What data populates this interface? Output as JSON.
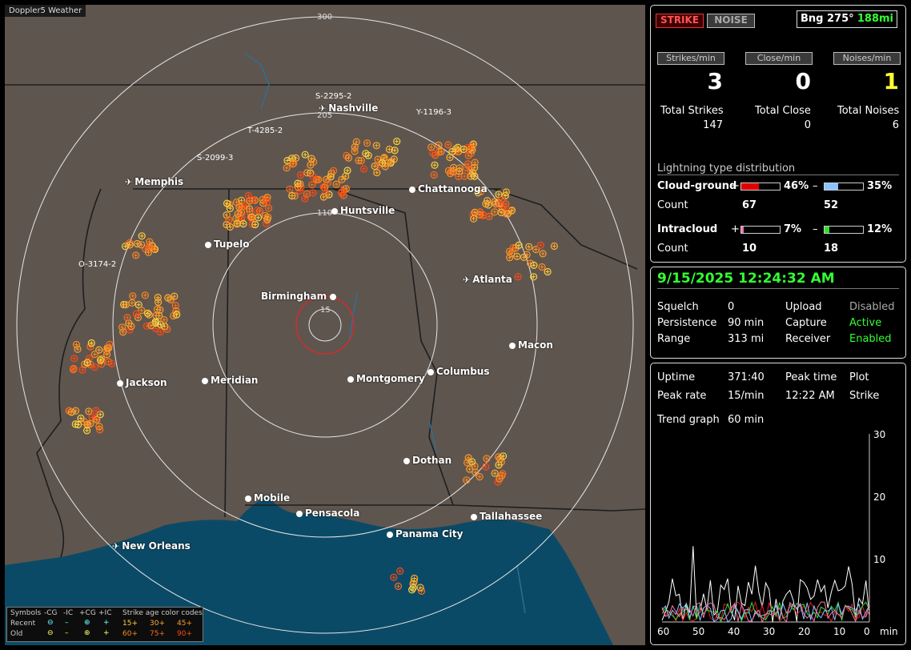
{
  "app": {
    "title": "Doppler5 Weather"
  },
  "map": {
    "range_labels": {
      "r300": "300",
      "r205": "205",
      "r110": "110",
      "r15": "15"
    },
    "cities": [
      {
        "name": "Nashville",
        "kind": "airport"
      },
      {
        "name": "Memphis",
        "kind": "airport"
      },
      {
        "name": "Chattanooga",
        "kind": "city"
      },
      {
        "name": "Huntsville",
        "kind": "city"
      },
      {
        "name": "Tupelo",
        "kind": "city"
      },
      {
        "name": "Birmingham",
        "kind": "city"
      },
      {
        "name": "Atlanta",
        "kind": "airport"
      },
      {
        "name": "Macon",
        "kind": "city"
      },
      {
        "name": "Jackson",
        "kind": "city"
      },
      {
        "name": "Meridian",
        "kind": "city"
      },
      {
        "name": "Montgomery",
        "kind": "city"
      },
      {
        "name": "Columbus",
        "kind": "city"
      },
      {
        "name": "Dothan",
        "kind": "city"
      },
      {
        "name": "Mobile",
        "kind": "city"
      },
      {
        "name": "Pensacola",
        "kind": "city"
      },
      {
        "name": "Tallahassee",
        "kind": "city"
      },
      {
        "name": "Panama City",
        "kind": "city"
      },
      {
        "name": "New Orleans",
        "kind": "airport"
      }
    ],
    "storm_labels": [
      "S-2295-2",
      "Y-1196-3",
      "T-4285-2",
      "S-2099-3",
      "O-3174-2"
    ]
  },
  "legend": {
    "symbols_label": "Symbols",
    "col_ncg": "-CG",
    "col_nic": "-IC",
    "col_pcg": "+CG",
    "col_pic": "+IC",
    "recent_label": "Recent",
    "old_label": "Old",
    "age_title": "Strike age color codes",
    "ages": [
      "15+",
      "30+",
      "45+",
      "60+",
      "75+",
      "90+"
    ],
    "age_colors": [
      "#ffd23c",
      "#ffb030",
      "#ff9a2a",
      "#ff8a1e",
      "#ff6a1a",
      "#ff4a14"
    ]
  },
  "top_panel": {
    "strike_button": "STRIKE",
    "noise_button": "NOISE",
    "bearing_label": "Bng 275°",
    "bearing_distance": "188mi",
    "rates": [
      {
        "label": "Strikes/min",
        "value": "3",
        "color": "#ffffff"
      },
      {
        "label": "Close/min",
        "value": "0",
        "color": "#ffffff"
      },
      {
        "label": "Noises/min",
        "value": "1",
        "color": "#ffff33"
      }
    ],
    "totals": [
      {
        "label": "Total Strikes",
        "value": "147"
      },
      {
        "label": "Total Close",
        "value": "0"
      },
      {
        "label": "Total Noises",
        "value": "6"
      }
    ],
    "distribution": {
      "title": "Lightning type distribution",
      "count_label": "Count",
      "cloud_ground": {
        "label": "Cloud-ground",
        "pos_sign": "+",
        "pos_pct": 46,
        "pos_text": "46%",
        "neg_sign": "–",
        "neg_pct": 35,
        "neg_text": "35%",
        "pos_count": "67",
        "neg_count": "52",
        "pos_color": "#e00000",
        "neg_color": "#88c4ff"
      },
      "intracloud": {
        "label": "Intracloud",
        "pos_sign": "+",
        "pos_pct": 7,
        "pos_text": "7%",
        "neg_sign": "–",
        "neg_pct": 12,
        "neg_text": "12%",
        "pos_count": "10",
        "neg_count": "18",
        "pos_color": "#ff70b0",
        "neg_color": "#30e030"
      }
    }
  },
  "mid_panel": {
    "datetime": "9/15/2025 12:24:32 AM",
    "rows": [
      {
        "l1": "Squelch",
        "v1": "0",
        "l2": "Upload",
        "v2": "Disabled",
        "c2": "#aaaaaa"
      },
      {
        "l1": "Persistence",
        "v1": "90 min",
        "l2": "Capture",
        "v2": "Active",
        "c2": "#33ff33"
      },
      {
        "l1": "Range",
        "v1": "313 mi",
        "l2": "Receiver",
        "v2": "Enabled",
        "c2": "#33ff33"
      }
    ]
  },
  "bottom_panel": {
    "uptime_label": "Uptime",
    "uptime_value": "371:40",
    "peak_time_label": "Peak time",
    "plot_label": "Plot",
    "peak_rate_label": "Peak rate",
    "peak_rate_value": "15/min",
    "peak_time_value": "12:22 AM",
    "plot_value": "Strike",
    "trend_label": "Trend graph",
    "trend_value": "60 min",
    "graph": {
      "y_ticks": [
        "30",
        "20",
        "10"
      ],
      "x_ticks": [
        "60",
        "50",
        "40",
        "30",
        "20",
        "10",
        "0"
      ],
      "x_unit": "min"
    }
  }
}
